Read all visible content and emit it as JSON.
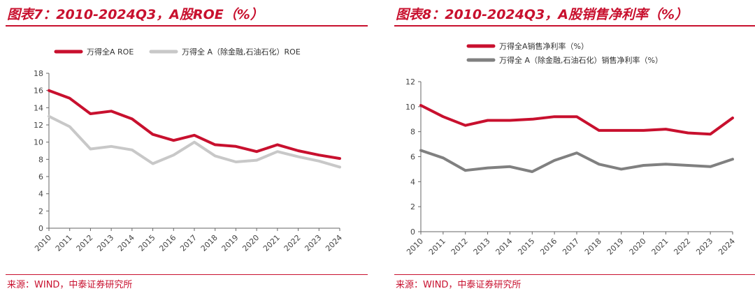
{
  "charts": [
    {
      "figure_title": "图表7：2010-2024Q3，A股ROE（%）",
      "source": "来源：WIND，中泰证券研究所"
    },
    {
      "figure_title": "图表8：2010-2024Q3，A股销售净利率（%）",
      "source": "来源：WIND，中泰证券研究所"
    }
  ],
  "chart_data": [
    {
      "type": "line",
      "title": "图表7：2010-2024Q3，A股ROE（%）",
      "x": [
        "2010",
        "2011",
        "2012",
        "2013",
        "2014",
        "2015",
        "2016",
        "2017",
        "2018",
        "2019",
        "2020",
        "2021",
        "2022",
        "2023",
        "2024"
      ],
      "ylim": [
        0,
        18
      ],
      "yticks": [
        0,
        2,
        4,
        6,
        8,
        10,
        12,
        14,
        16,
        18
      ],
      "grid": false,
      "legend": "top",
      "series": [
        {
          "name": "万得全A ROE",
          "color": "#c8102e",
          "values": [
            16.0,
            15.1,
            13.3,
            13.6,
            12.7,
            10.9,
            10.2,
            10.8,
            9.7,
            9.5,
            8.9,
            9.7,
            9.0,
            8.5,
            8.1
          ]
        },
        {
          "name": "万得全 A（除金融,石油石化）ROE",
          "color": "#c8c8c8",
          "values": [
            13.0,
            11.8,
            9.2,
            9.5,
            9.1,
            7.5,
            8.5,
            10.0,
            8.4,
            7.7,
            7.9,
            8.9,
            8.3,
            7.8,
            7.1
          ]
        }
      ]
    },
    {
      "type": "line",
      "title": "图表8：2010-2024Q3，A股销售净利率（%）",
      "x": [
        "2010",
        "2011",
        "2012",
        "2013",
        "2014",
        "2015",
        "2016",
        "2017",
        "2018",
        "2019",
        "2020",
        "2021",
        "2022",
        "2023",
        "2024"
      ],
      "ylim": [
        0,
        12
      ],
      "yticks": [
        0,
        2,
        4,
        6,
        8,
        10,
        12
      ],
      "grid": false,
      "legend": "top",
      "series": [
        {
          "name": "万得全A销售净利率（%）",
          "color": "#c8102e",
          "values": [
            10.1,
            9.2,
            8.5,
            8.9,
            8.9,
            9.0,
            9.2,
            9.2,
            8.1,
            8.1,
            8.1,
            8.2,
            7.9,
            7.8,
            9.1
          ]
        },
        {
          "name": "万得全 A（除金融,石油石化）销售净利率（%）",
          "color": "#808080",
          "values": [
            6.5,
            5.9,
            4.9,
            5.1,
            5.2,
            4.8,
            5.7,
            6.3,
            5.4,
            5.0,
            5.3,
            5.4,
            5.3,
            5.2,
            5.8
          ]
        }
      ]
    }
  ]
}
